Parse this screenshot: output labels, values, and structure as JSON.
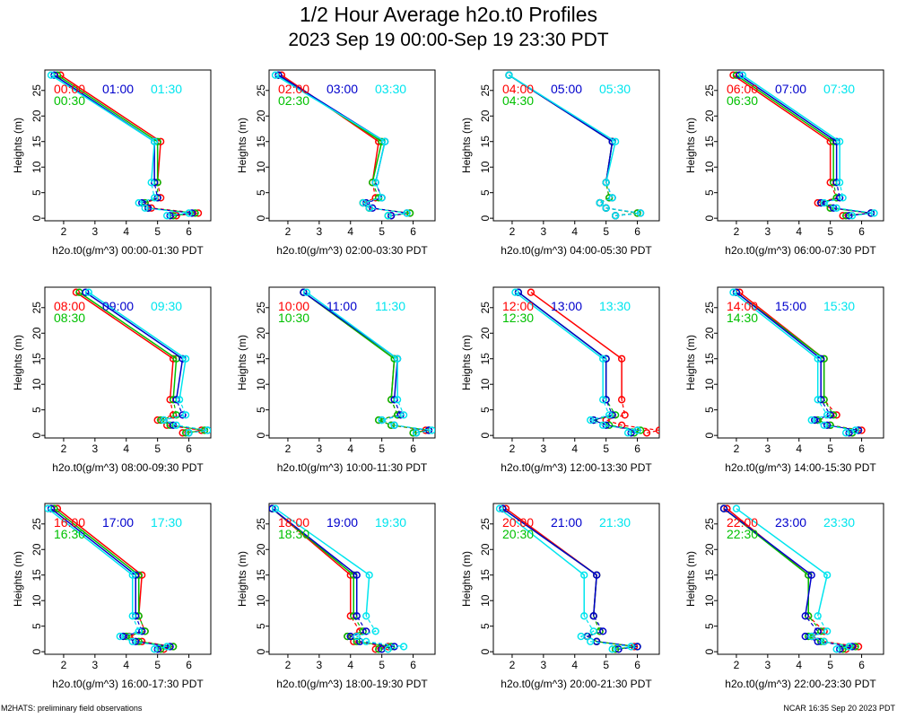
{
  "page": {
    "title": "1/2 Hour Average h2o.t0 Profiles",
    "subtitle": "2023 Sep 19 00:00-Sep 19 23:30 PDT",
    "footer_left": "M2HATS: preliminary field observations",
    "footer_right": "NCAR 16:35 Sep 20 2023 PDT"
  },
  "colors": {
    "red": "#ff0000",
    "green": "#00c000",
    "blue": "#0000cc",
    "cyan": "#00e5ee"
  },
  "chart_data": [
    {
      "type": "line",
      "xlabel": "h2o.t0(g/m^3) 00:00-01:30 PDT",
      "ylabel": "Heights (m)",
      "xlim": [
        1.4,
        6.7
      ],
      "ylim": [
        -0.5,
        29
      ],
      "xticks": [
        2,
        3,
        4,
        5,
        6
      ],
      "yticks": [
        0,
        5,
        10,
        15,
        20,
        25
      ],
      "heights": [
        0.5,
        1,
        2,
        3,
        4,
        7,
        15,
        28
      ],
      "series": [
        {
          "name": "00:00",
          "color": "red",
          "values": [
            5.6,
            6.3,
            4.8,
            4.6,
            5.1,
            5.0,
            5.1,
            1.9
          ]
        },
        {
          "name": "00:30",
          "color": "green",
          "values": [
            5.5,
            6.2,
            4.7,
            4.6,
            5.0,
            5.0,
            5.0,
            1.8
          ]
        },
        {
          "name": "01:00",
          "color": "blue",
          "values": [
            5.4,
            6.1,
            4.7,
            4.5,
            5.0,
            4.9,
            4.9,
            1.7
          ]
        },
        {
          "name": "01:30",
          "color": "cyan",
          "values": [
            5.3,
            6.0,
            4.6,
            4.4,
            4.9,
            4.8,
            4.9,
            1.6
          ]
        }
      ]
    },
    {
      "type": "line",
      "xlabel": "h2o.t0(g/m^3) 02:00-03:30 PDT",
      "ylabel": "Heights (m)",
      "xlim": [
        1.4,
        6.7
      ],
      "ylim": [
        -0.5,
        29
      ],
      "xticks": [
        2,
        3,
        4,
        5,
        6
      ],
      "yticks": [
        0,
        5,
        10,
        15,
        20,
        25
      ],
      "heights": [
        0.5,
        1,
        2,
        3,
        4,
        7,
        15,
        28
      ],
      "series": [
        {
          "name": "02:00",
          "color": "red",
          "values": [
            5.3,
            5.9,
            4.6,
            4.4,
            4.8,
            4.7,
            4.9,
            1.8
          ]
        },
        {
          "name": "02:30",
          "color": "green",
          "values": [
            5.2,
            5.9,
            4.6,
            4.4,
            4.9,
            4.7,
            5.0,
            1.7
          ]
        },
        {
          "name": "03:00",
          "color": "blue",
          "values": [
            5.3,
            5.8,
            4.7,
            4.5,
            5.0,
            4.8,
            5.1,
            1.7
          ]
        },
        {
          "name": "03:30",
          "color": "cyan",
          "values": [
            5.2,
            5.8,
            4.6,
            4.4,
            5.0,
            4.8,
            5.1,
            1.6
          ]
        }
      ]
    },
    {
      "type": "line",
      "xlabel": "h2o.t0(g/m^3) 04:00-05:30 PDT",
      "ylabel": "Heights (m)",
      "xlim": [
        1.4,
        6.7
      ],
      "ylim": [
        -0.5,
        29
      ],
      "xticks": [
        2,
        3,
        4,
        5,
        6
      ],
      "yticks": [
        0,
        5,
        10,
        15,
        20,
        25
      ],
      "heights": [
        0.5,
        1,
        2,
        3,
        4,
        7,
        15,
        28
      ],
      "series": [
        {
          "name": "04:00",
          "color": "red",
          "values": [
            5.3,
            6.0,
            5.0,
            4.8,
            5.1,
            5.0,
            5.2,
            1.9
          ]
        },
        {
          "name": "04:30",
          "color": "green",
          "values": [
            5.3,
            6.0,
            5.0,
            4.8,
            5.1,
            5.0,
            5.2,
            1.9
          ]
        },
        {
          "name": "05:00",
          "color": "blue",
          "values": [
            5.3,
            6.1,
            5.0,
            4.8,
            5.2,
            5.0,
            5.2,
            1.9
          ]
        },
        {
          "name": "05:30",
          "color": "cyan",
          "values": [
            5.3,
            6.1,
            5.0,
            4.8,
            5.2,
            5.0,
            5.3,
            1.9
          ]
        }
      ]
    },
    {
      "type": "line",
      "xlabel": "h2o.t0(g/m^3) 06:00-07:30 PDT",
      "ylabel": "Heights (m)",
      "xlim": [
        1.4,
        6.7
      ],
      "ylim": [
        -0.5,
        29
      ],
      "xticks": [
        2,
        3,
        4,
        5,
        6
      ],
      "yticks": [
        0,
        5,
        10,
        15,
        20,
        25
      ],
      "heights": [
        0.5,
        1,
        2,
        3,
        4,
        7,
        15,
        28
      ],
      "series": [
        {
          "name": "06:00",
          "color": "red",
          "values": [
            5.4,
            6.3,
            5.0,
            4.6,
            5.2,
            5.0,
            5.0,
            1.9
          ]
        },
        {
          "name": "06:30",
          "color": "green",
          "values": [
            5.5,
            6.3,
            5.0,
            4.7,
            5.2,
            5.1,
            5.1,
            2.0
          ]
        },
        {
          "name": "07:00",
          "color": "blue",
          "values": [
            5.6,
            6.3,
            5.1,
            4.7,
            5.3,
            5.2,
            5.2,
            2.1
          ]
        },
        {
          "name": "07:30",
          "color": "cyan",
          "values": [
            5.7,
            6.4,
            5.2,
            4.8,
            5.4,
            5.3,
            5.3,
            2.2
          ]
        }
      ]
    },
    {
      "type": "line",
      "xlabel": "h2o.t0(g/m^3) 08:00-09:30 PDT",
      "ylabel": "Heights (m)",
      "xlim": [
        1.4,
        6.7
      ],
      "ylim": [
        -0.5,
        29
      ],
      "xticks": [
        2,
        3,
        4,
        5,
        6
      ],
      "yticks": [
        0,
        5,
        10,
        15,
        20,
        25
      ],
      "heights": [
        0.5,
        1,
        2,
        3,
        4,
        7,
        15,
        28
      ],
      "series": [
        {
          "name": "08:00",
          "color": "red",
          "values": [
            5.8,
            6.4,
            5.3,
            5.0,
            5.5,
            5.4,
            5.5,
            2.4
          ]
        },
        {
          "name": "08:30",
          "color": "green",
          "values": [
            5.9,
            6.5,
            5.4,
            5.1,
            5.6,
            5.5,
            5.6,
            2.5
          ]
        },
        {
          "name": "09:00",
          "color": "blue",
          "values": [
            6.0,
            6.6,
            5.5,
            5.2,
            5.8,
            5.6,
            5.8,
            2.7
          ]
        },
        {
          "name": "09:30",
          "color": "cyan",
          "values": [
            6.0,
            6.6,
            5.6,
            5.2,
            5.9,
            5.7,
            5.9,
            2.8
          ]
        }
      ]
    },
    {
      "type": "line",
      "xlabel": "h2o.t0(g/m^3) 10:00-11:30 PDT",
      "ylabel": "Heights (m)",
      "xlim": [
        1.4,
        6.7
      ],
      "ylim": [
        -0.5,
        29
      ],
      "xticks": [
        2,
        3,
        4,
        5,
        6
      ],
      "yticks": [
        0,
        5,
        10,
        15,
        20,
        25
      ],
      "heights": [
        0.5,
        1,
        2,
        3,
        4,
        7,
        15,
        28
      ],
      "series": [
        {
          "name": "10:00",
          "color": "red",
          "values": [
            6.0,
            6.4,
            5.3,
            4.9,
            5.5,
            5.3,
            5.4,
            2.5
          ]
        },
        {
          "name": "10:30",
          "color": "green",
          "values": [
            6.0,
            6.5,
            5.3,
            4.9,
            5.5,
            5.3,
            5.4,
            2.5
          ]
        },
        {
          "name": "11:00",
          "color": "blue",
          "values": [
            6.1,
            6.5,
            5.4,
            5.0,
            5.6,
            5.4,
            5.5,
            2.5
          ]
        },
        {
          "name": "11:30",
          "color": "cyan",
          "values": [
            6.1,
            6.6,
            5.4,
            5.0,
            5.7,
            5.5,
            5.5,
            2.6
          ]
        }
      ]
    },
    {
      "type": "line",
      "xlabel": "h2o.t0(g/m^3) 12:00-13:30 PDT",
      "ylabel": "Heights (m)",
      "xlim": [
        1.4,
        6.7
      ],
      "ylim": [
        -0.5,
        29
      ],
      "xticks": [
        2,
        3,
        4,
        5,
        6
      ],
      "yticks": [
        0,
        5,
        10,
        15,
        20,
        25
      ],
      "heights": [
        0.5,
        1,
        2,
        3,
        4,
        7,
        15,
        28
      ],
      "series": [
        {
          "name": "12:00",
          "color": "red",
          "values": [
            6.3,
            6.7,
            5.5,
            5.0,
            5.6,
            5.5,
            5.5,
            2.6
          ]
        },
        {
          "name": "12:30",
          "color": "green",
          "values": [
            5.9,
            6.1,
            5.1,
            4.6,
            5.3,
            5.0,
            5.0,
            2.2
          ]
        },
        {
          "name": "13:00",
          "color": "blue",
          "values": [
            5.8,
            6.0,
            5.0,
            4.6,
            5.2,
            5.0,
            5.0,
            2.2
          ]
        },
        {
          "name": "13:30",
          "color": "cyan",
          "values": [
            5.7,
            6.0,
            4.9,
            4.5,
            5.1,
            4.9,
            4.9,
            2.1
          ]
        }
      ]
    },
    {
      "type": "line",
      "xlabel": "h2o.t0(g/m^3) 14:00-15:30 PDT",
      "ylabel": "Heights (m)",
      "xlim": [
        1.4,
        6.7
      ],
      "ylim": [
        -0.5,
        29
      ],
      "xticks": [
        2,
        3,
        4,
        5,
        6
      ],
      "yticks": [
        0,
        5,
        10,
        15,
        20,
        25
      ],
      "heights": [
        0.5,
        1,
        2,
        3,
        4,
        7,
        15,
        28
      ],
      "series": [
        {
          "name": "14:00",
          "color": "red",
          "values": [
            5.7,
            6.0,
            5.0,
            4.6,
            5.2,
            4.8,
            4.8,
            2.1
          ]
        },
        {
          "name": "14:30",
          "color": "green",
          "values": [
            5.7,
            5.9,
            5.0,
            4.6,
            5.1,
            4.8,
            4.8,
            2.0
          ]
        },
        {
          "name": "15:00",
          "color": "blue",
          "values": [
            5.6,
            5.9,
            4.9,
            4.5,
            5.0,
            4.7,
            4.7,
            2.0
          ]
        },
        {
          "name": "15:30",
          "color": "cyan",
          "values": [
            5.5,
            5.8,
            4.8,
            4.4,
            4.9,
            4.6,
            4.6,
            1.9
          ]
        }
      ]
    },
    {
      "type": "line",
      "xlabel": "h2o.t0(g/m^3) 16:00-17:30 PDT",
      "ylabel": "Heights (m)",
      "xlim": [
        1.4,
        6.7
      ],
      "ylim": [
        -0.5,
        29
      ],
      "xticks": [
        2,
        3,
        4,
        5,
        6
      ],
      "yticks": [
        0,
        5,
        10,
        15,
        20,
        25
      ],
      "heights": [
        0.5,
        1,
        2,
        3,
        4,
        7,
        15,
        28
      ],
      "series": [
        {
          "name": "16:00",
          "color": "red",
          "values": [
            5.2,
            5.5,
            4.5,
            4.1,
            4.6,
            4.4,
            4.5,
            1.8
          ]
        },
        {
          "name": "16:30",
          "color": "green",
          "values": [
            5.1,
            5.5,
            4.4,
            4.0,
            4.6,
            4.4,
            4.4,
            1.7
          ]
        },
        {
          "name": "17:00",
          "color": "blue",
          "values": [
            5.0,
            5.4,
            4.3,
            3.9,
            4.5,
            4.3,
            4.3,
            1.6
          ]
        },
        {
          "name": "17:30",
          "color": "cyan",
          "values": [
            4.9,
            5.3,
            4.2,
            3.8,
            4.4,
            4.2,
            4.2,
            1.5
          ]
        }
      ]
    },
    {
      "type": "line",
      "xlabel": "h2o.t0(g/m^3) 18:00-19:30 PDT",
      "ylabel": "Heights (m)",
      "xlim": [
        1.4,
        6.7
      ],
      "ylim": [
        -0.5,
        29
      ],
      "xticks": [
        2,
        3,
        4,
        5,
        6
      ],
      "yticks": [
        0,
        5,
        10,
        15,
        20,
        25
      ],
      "heights": [
        0.5,
        1,
        2,
        3,
        4,
        7,
        15,
        28
      ],
      "series": [
        {
          "name": "18:00",
          "color": "red",
          "values": [
            4.8,
            5.2,
            4.1,
            3.9,
            4.3,
            4.0,
            4.0,
            1.5
          ]
        },
        {
          "name": "18:30",
          "color": "green",
          "values": [
            4.9,
            5.3,
            4.2,
            3.9,
            4.4,
            4.1,
            4.1,
            1.5
          ]
        },
        {
          "name": "19:00",
          "color": "blue",
          "values": [
            5.0,
            5.4,
            4.3,
            4.0,
            4.5,
            4.2,
            4.2,
            1.5
          ]
        },
        {
          "name": "19:30",
          "color": "cyan",
          "values": [
            5.2,
            5.7,
            4.5,
            4.2,
            4.8,
            4.5,
            4.6,
            1.6
          ]
        }
      ]
    },
    {
      "type": "line",
      "xlabel": "h2o.t0(g/m^3) 20:00-21:30 PDT",
      "ylabel": "Heights (m)",
      "xlim": [
        1.4,
        6.7
      ],
      "ylim": [
        -0.5,
        29
      ],
      "xticks": [
        2,
        3,
        4,
        5,
        6
      ],
      "yticks": [
        0,
        5,
        10,
        15,
        20,
        25
      ],
      "heights": [
        0.5,
        1,
        2,
        3,
        4,
        7,
        15,
        28
      ],
      "series": [
        {
          "name": "20:00",
          "color": "red",
          "values": [
            5.3,
            5.9,
            4.7,
            4.4,
            4.8,
            4.6,
            4.7,
            1.8
          ]
        },
        {
          "name": "20:30",
          "color": "green",
          "values": [
            5.3,
            6.0,
            4.7,
            4.4,
            4.8,
            4.6,
            4.7,
            1.7
          ]
        },
        {
          "name": "21:00",
          "color": "blue",
          "values": [
            5.4,
            6.0,
            4.7,
            4.4,
            4.9,
            4.6,
            4.7,
            1.7
          ]
        },
        {
          "name": "21:30",
          "color": "cyan",
          "values": [
            5.2,
            5.8,
            4.5,
            4.2,
            4.6,
            4.3,
            4.3,
            1.6
          ]
        }
      ]
    },
    {
      "type": "line",
      "xlabel": "h2o.t0(g/m^3) 22:00-23:30 PDT",
      "ylabel": "Heights (m)",
      "xlim": [
        1.4,
        6.7
      ],
      "ylim": [
        -0.5,
        29
      ],
      "xticks": [
        2,
        3,
        4,
        5,
        6
      ],
      "yticks": [
        0,
        5,
        10,
        15,
        20,
        25
      ],
      "heights": [
        0.5,
        1,
        2,
        3,
        4,
        7,
        15,
        28
      ],
      "series": [
        {
          "name": "22:00",
          "color": "red",
          "values": [
            5.5,
            5.9,
            4.8,
            4.4,
            4.8,
            4.3,
            4.3,
            1.7
          ]
        },
        {
          "name": "22:30",
          "color": "green",
          "values": [
            5.4,
            5.8,
            4.7,
            4.3,
            4.7,
            4.3,
            4.3,
            1.6
          ]
        },
        {
          "name": "23:00",
          "color": "blue",
          "values": [
            5.3,
            5.7,
            4.6,
            4.2,
            4.6,
            4.2,
            4.4,
            1.6
          ]
        },
        {
          "name": "23:30",
          "color": "cyan",
          "values": [
            5.2,
            5.6,
            4.8,
            4.4,
            4.9,
            4.6,
            4.9,
            2.0
          ]
        }
      ]
    }
  ]
}
